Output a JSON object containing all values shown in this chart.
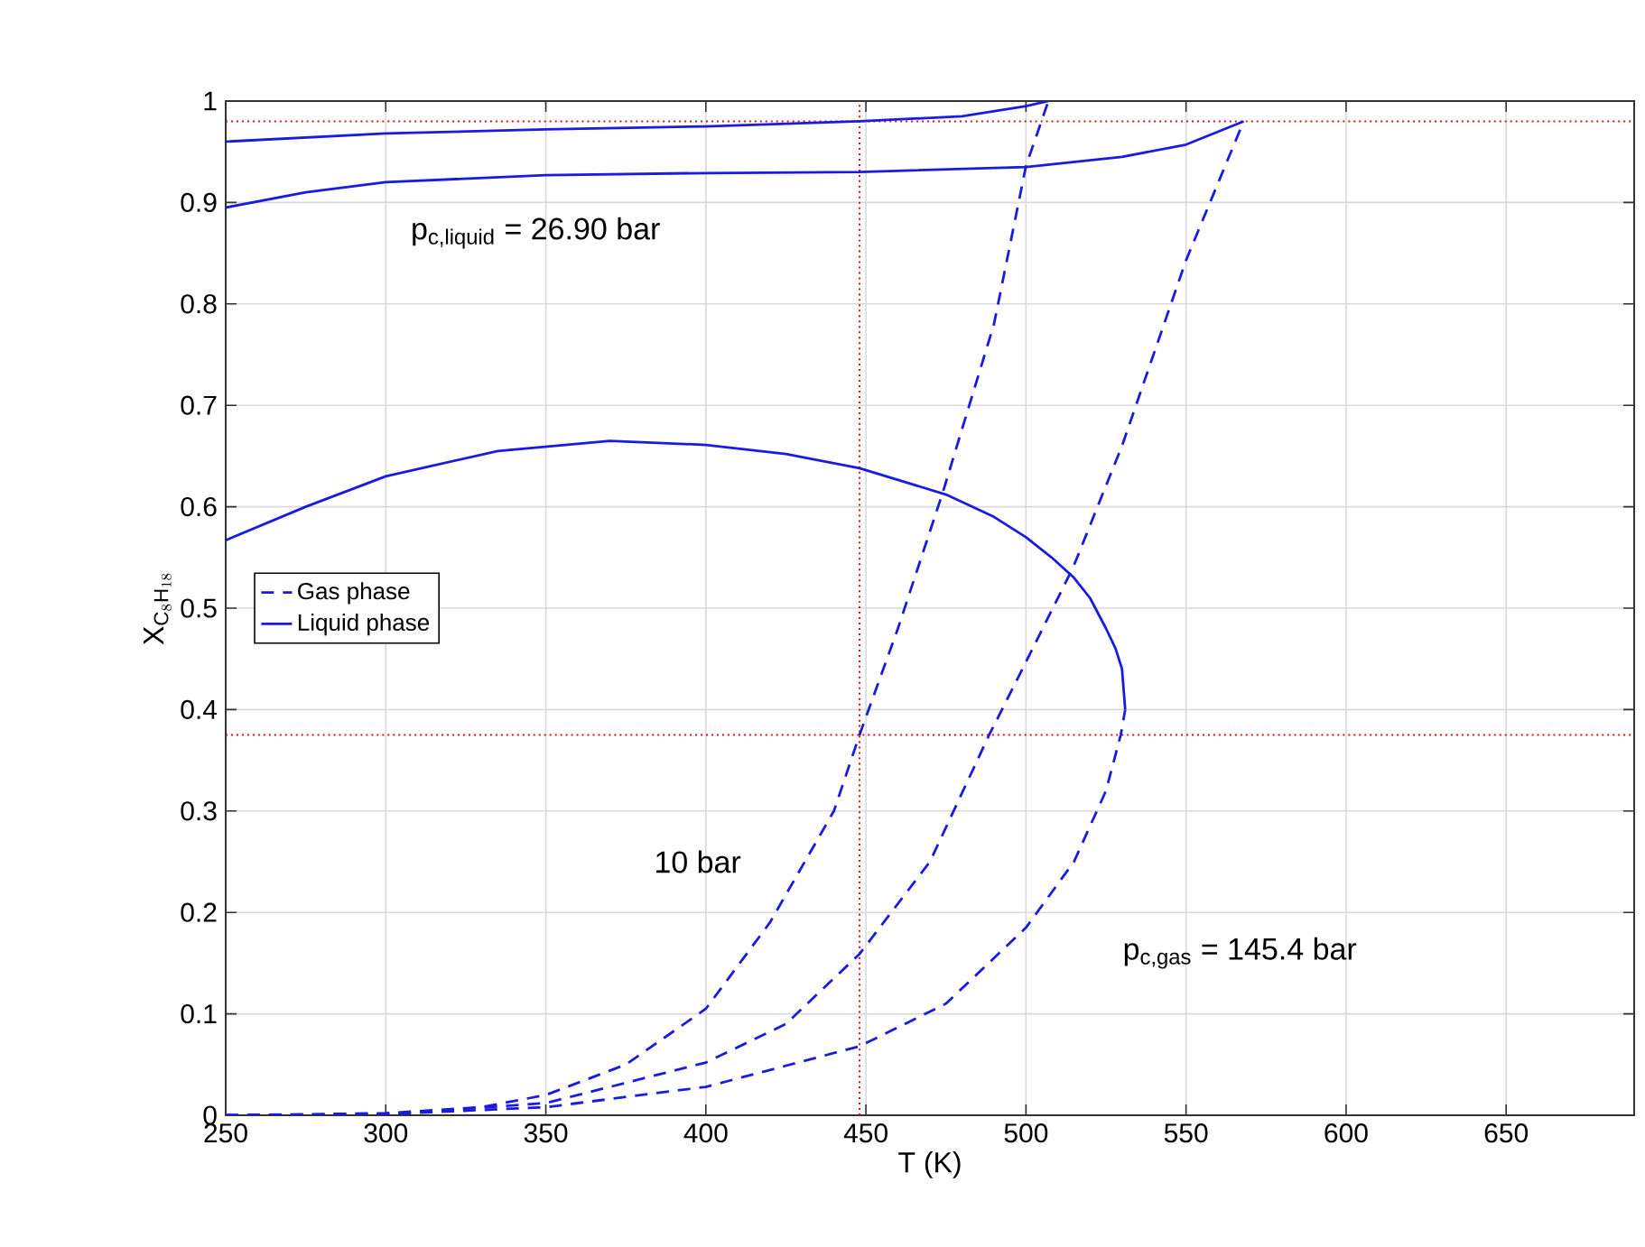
{
  "chart_data": {
    "type": "line",
    "ylabel": "\\mathrm{X}_{\\mathrm{C}_8\\mathrm{H}_{18}}",
    "xlabel": "T (K)",
    "xlim": [
      250,
      690
    ],
    "ylim": [
      0,
      1
    ],
    "xticks": [
      250,
      300,
      350,
      400,
      450,
      500,
      550,
      600,
      650
    ],
    "yticks": [
      0,
      0.1,
      0.2,
      0.3,
      0.4,
      0.5,
      0.6,
      0.7,
      0.8,
      0.9,
      1
    ],
    "grid": true,
    "legend": "left",
    "series": [
      {
        "name": "Gas phase",
        "color": "#1a1ae0",
        "line_style": "dashed",
        "x": [
          250,
          300,
          330,
          350,
          375,
          400,
          420,
          440,
          448,
          460,
          474,
          490,
          500,
          507
        ],
        "values": [
          0,
          0.002,
          0.008,
          0.02,
          0.05,
          0.105,
          0.19,
          0.3,
          0.375,
          0.48,
          0.614,
          0.78,
          0.936,
          1.0
        ]
      },
      {
        "color": "#1a1ae0",
        "line_style": "dashed",
        "x": [
          250,
          300,
          350,
          400,
          425,
          448,
          470,
          488.5,
          500,
          514.7,
          530,
          550,
          568
        ],
        "values": [
          0,
          0.001,
          0.012,
          0.052,
          0.09,
          0.159,
          0.25,
          0.375,
          0.447,
          0.54,
          0.66,
          0.843,
          0.98
        ]
      },
      {
        "color": "#1a1ae0",
        "line_style": "dashed",
        "x": [
          250,
          300,
          350,
          400,
          448,
          475,
          500,
          515,
          525,
          529.6,
          531
        ],
        "values": [
          0,
          0.001,
          0.008,
          0.028,
          0.068,
          0.11,
          0.185,
          0.25,
          0.32,
          0.375,
          0.4
        ]
      },
      {
        "name": "Liquid phase",
        "color": "#1a1ae0",
        "line_style": "solid",
        "x": [
          250,
          300,
          350,
          400,
          448,
          480,
          500,
          507
        ],
        "values": [
          0.96,
          0.968,
          0.972,
          0.975,
          0.98,
          0.985,
          0.995,
          1.0
        ]
      },
      {
        "color": "#1a1ae0",
        "line_style": "solid",
        "x": [
          250,
          275,
          300,
          350,
          400,
          448,
          500,
          530,
          550,
          568
        ],
        "values": [
          0.895,
          0.91,
          0.92,
          0.927,
          0.929,
          0.93,
          0.935,
          0.945,
          0.957,
          0.98
        ]
      },
      {
        "color": "#1a1ae0",
        "line_style": "solid",
        "x": [
          250,
          275,
          300,
          335,
          370,
          400,
          425,
          448,
          475,
          490,
          500,
          508,
          515,
          520,
          525,
          528,
          530,
          531
        ],
        "values": [
          0.567,
          0.6,
          0.63,
          0.655,
          0.665,
          0.661,
          0.652,
          0.638,
          0.612,
          0.59,
          0.57,
          0.55,
          0.53,
          0.51,
          0.48,
          0.46,
          0.44,
          0.4
        ]
      }
    ],
    "ref_lines": [
      {
        "axis": "x",
        "value": 448,
        "color": "#e01010",
        "line_style": "dotted"
      },
      {
        "axis": "y",
        "value": 0.98,
        "color": "#e01010",
        "line_style": "dotted"
      },
      {
        "axis": "y",
        "value": 0.375,
        "color": "#e01010",
        "line_style": "dotted"
      }
    ],
    "annotations": [
      "p$_{c,liquid}$ = 26.90 bar",
      "10 bar",
      "p$_{c,gas}$ = 145.4 bar"
    ]
  }
}
